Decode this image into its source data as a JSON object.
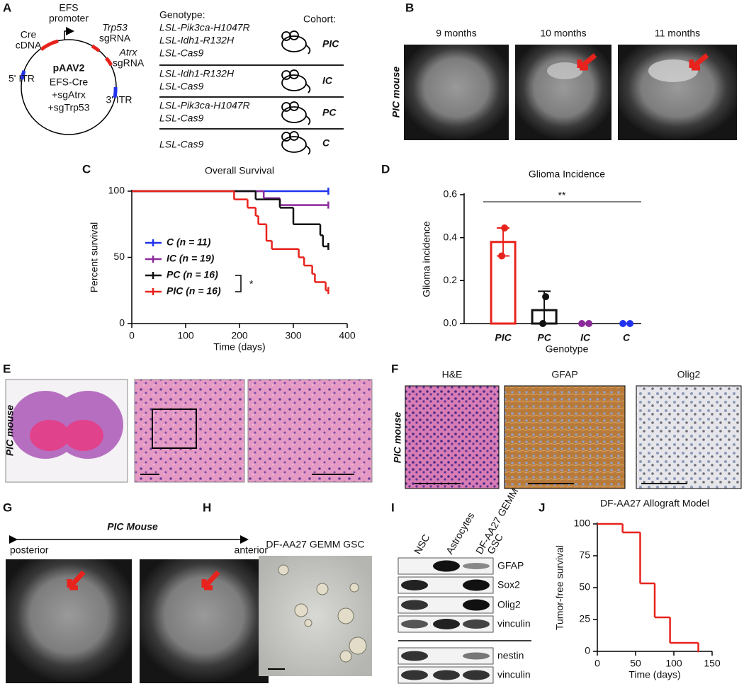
{
  "panel_labels": [
    "A",
    "B",
    "C",
    "D",
    "E",
    "F",
    "G",
    "H",
    "I",
    "J"
  ],
  "panel_a": {
    "plasmid": {
      "name": "pAAV2",
      "insert": [
        "EFS-Cre",
        "+sgAtrx",
        "+sgTrp53"
      ],
      "features": [
        [
          "EFS",
          "promoter"
        ],
        [
          "Cre",
          "cDNA"
        ],
        [
          "Trp53",
          "sgRNA"
        ],
        [
          "Atrx",
          "sgRNA"
        ],
        [
          "5' ITR"
        ],
        [
          "3' ITR"
        ]
      ]
    },
    "genotype_header": "Genotype:",
    "cohort_header": "Cohort:",
    "rows": [
      {
        "alleles": [
          {
            "text": "LSL-Pik3ca-H1047R",
            "color": "#2b3fe0"
          },
          {
            "text": "LSL-Idh1-R132H",
            "color": "#e8221c"
          },
          {
            "text": "LSL-Cas9",
            "color": "#111111"
          }
        ],
        "cohort": "PIC"
      },
      {
        "alleles": [
          {
            "text": "LSL-Idh1-R132H",
            "color": "#e8221c"
          },
          {
            "text": "LSL-Cas9",
            "color": "#111111"
          }
        ],
        "cohort": "IC"
      },
      {
        "alleles": [
          {
            "text": "LSL-Pik3ca-H1047R",
            "color": "#2b3fe0"
          },
          {
            "text": "LSL-Cas9",
            "color": "#111111"
          }
        ],
        "cohort": "PC"
      },
      {
        "alleles": [
          {
            "text": "LSL-Cas9",
            "color": "#111111"
          }
        ],
        "cohort": "C"
      }
    ]
  },
  "panel_b": {
    "timepoints": [
      "9 months",
      "10 months",
      "11 months"
    ],
    "side_label": "PIC mouse"
  },
  "panel_e": {
    "side_label": "PIC mouse"
  },
  "panel_f": {
    "stains": [
      "H&E",
      "GFAP",
      "Olig2"
    ],
    "side_label": "PIC mouse"
  },
  "panel_g": {
    "title": "PIC Mouse",
    "left": "posterior",
    "right": "anterior"
  },
  "panel_h": {
    "title": "DF-AA27 GEMM GSC"
  },
  "panel_i": {
    "columns": [
      [
        "NSC"
      ],
      [
        "Astrocytes"
      ],
      [
        "DF-AA27 GEMM",
        "GSC"
      ]
    ],
    "rows": [
      "GFAP",
      "Sox2",
      "Olig2",
      "vinculin"
    ],
    "rows_lower": [
      "nestin",
      "vinculin"
    ]
  },
  "chart_data": [
    {
      "type": "survival",
      "title": "Overall Survival",
      "x_label": "Time (days)",
      "y_label": "Percent survival",
      "xlim": [
        0,
        400
      ],
      "xticks": [
        0,
        100,
        200,
        300,
        400
      ],
      "ylim": [
        0,
        100
      ],
      "yticks": [
        0,
        50,
        100
      ],
      "censor_marks": true,
      "series": [
        {
          "name": "C (n = 11)",
          "color": "#2233ee",
          "x": [
            0,
            365
          ],
          "values": [
            100,
            100
          ]
        },
        {
          "name": "IC (n = 19)",
          "color": "#8b2a9a",
          "x": [
            0,
            245,
            275,
            365
          ],
          "values": [
            100,
            94.7,
            89.5,
            89.5
          ]
        },
        {
          "name": "PC (n = 16)",
          "color": "#111111",
          "x": [
            0,
            230,
            275,
            300,
            350,
            355,
            365
          ],
          "values": [
            100,
            93.8,
            87.5,
            75,
            66.7,
            58.3,
            58.3
          ]
        },
        {
          "name": "PIC (n = 16)",
          "color": "#e8221c",
          "x": [
            0,
            190,
            215,
            230,
            235,
            250,
            260,
            310,
            320,
            335,
            340,
            360,
            365
          ],
          "values": [
            100,
            93.8,
            87.5,
            81.3,
            75,
            62.5,
            56.3,
            50,
            43.8,
            37.5,
            31.3,
            25,
            25
          ]
        }
      ],
      "annotation": "*"
    },
    {
      "type": "bar",
      "title": "Glioma Incidence",
      "x_label": "Genotype",
      "y_label": "Glioma incidence",
      "categories": [
        "PIC",
        "PC",
        "IC",
        "C"
      ],
      "values": [
        0.38,
        0.0625,
        0,
        0
      ],
      "errors": [
        0.065,
        0.088,
        0,
        0
      ],
      "points": [
        [
          0.445,
          0.315
        ],
        [
          0.125,
          0
        ],
        [
          0,
          0
        ],
        [
          0,
          0
        ]
      ],
      "colors": [
        "#e8221c",
        "#111111",
        "#8b2a9a",
        "#2233ee"
      ],
      "ylim": [
        0,
        0.6
      ],
      "yticks": [
        {
          "value": 0,
          "label": "0.0"
        },
        {
          "value": 0.2,
          "label": "0.2"
        },
        {
          "value": 0.4,
          "label": "0.4"
        },
        {
          "value": 0.6,
          "label": "0.6"
        }
      ],
      "annotation": "**"
    },
    {
      "type": "survival",
      "title": "DF-AA27 Allograft Model",
      "x_label": "Time (days)",
      "y_label": "Tumor-free survival",
      "xlim": [
        0,
        150
      ],
      "xticks": [
        0,
        50,
        100,
        150
      ],
      "ylim": [
        0,
        100
      ],
      "yticks": [
        0,
        25,
        50,
        75,
        100
      ],
      "censor_marks": false,
      "series": [
        {
          "color": "#e8221c",
          "x": [
            0,
            33,
            56,
            75,
            95,
            132
          ],
          "values": [
            100,
            93.3,
            53.3,
            26.7,
            6.7,
            0
          ]
        }
      ]
    }
  ]
}
